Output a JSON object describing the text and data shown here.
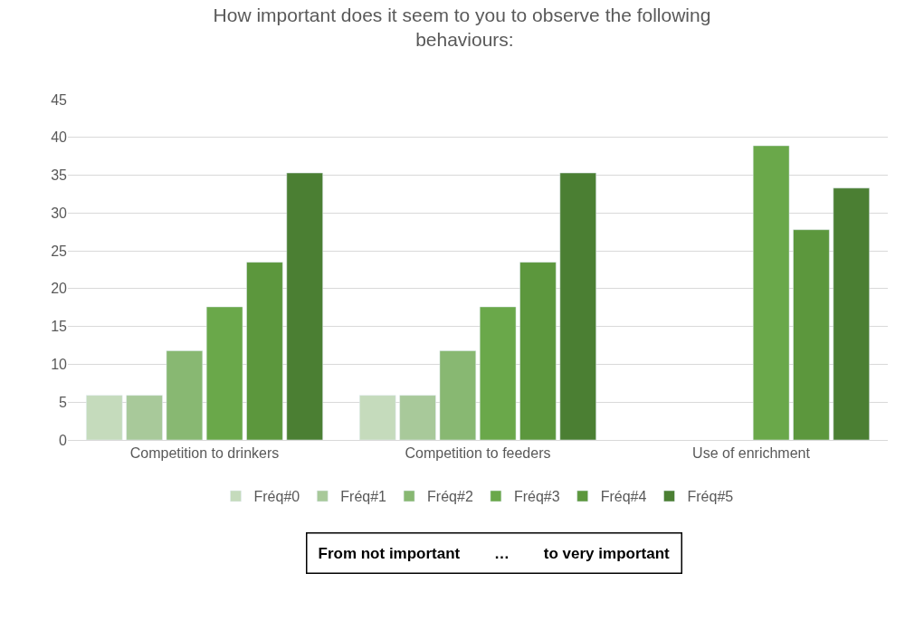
{
  "chart_data": {
    "type": "bar",
    "title": "How important does it seem to you to observe the following behaviours:",
    "categories": [
      "Competition to drinkers",
      "Competition to feeders",
      "Use of enrichment"
    ],
    "series": [
      {
        "name": "Fréq#0",
        "color": "#c5dbbc",
        "values": [
          5.9,
          5.9,
          null
        ]
      },
      {
        "name": "Fréq#1",
        "color": "#a8c99a",
        "values": [
          5.9,
          5.9,
          null
        ]
      },
      {
        "name": "Fréq#2",
        "color": "#88b872",
        "values": [
          11.8,
          11.8,
          null
        ]
      },
      {
        "name": "Fréq#3",
        "color": "#6aa84a",
        "values": [
          17.6,
          17.6,
          38.9
        ]
      },
      {
        "name": "Fréq#4",
        "color": "#5c973d",
        "values": [
          23.5,
          23.5,
          27.8
        ]
      },
      {
        "name": "Fréq#5",
        "color": "#4b7f33",
        "values": [
          35.3,
          35.3,
          33.3
        ]
      }
    ],
    "ylim": [
      0,
      45
    ],
    "yticks": [
      0,
      5,
      10,
      15,
      20,
      25,
      30,
      35,
      40,
      45
    ],
    "grid": "y",
    "legend": "bottom",
    "annotations": [
      "From not important        …        to very important"
    ]
  }
}
